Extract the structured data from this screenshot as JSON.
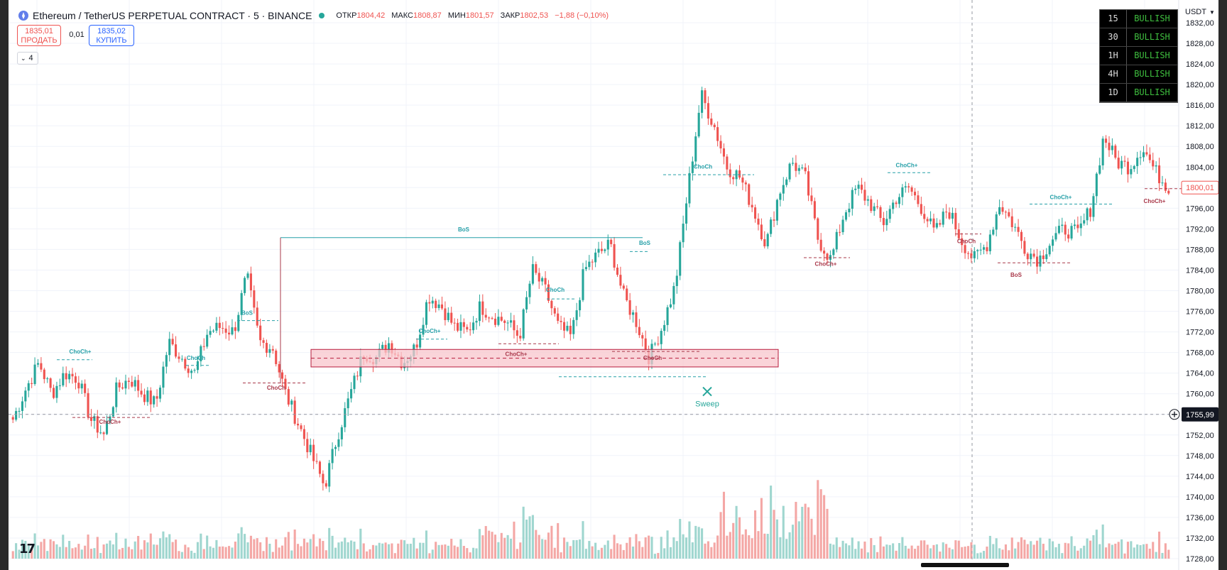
{
  "header": {
    "symbol": "Ethereum / TetherUS PERPETUAL CONTRACT · 5 · BINANCE",
    "ohlc": [
      {
        "label": "ОТКР",
        "value": "1804,42"
      },
      {
        "label": "МАКС",
        "value": "1808,87"
      },
      {
        "label": "МИН",
        "value": "1801,57"
      },
      {
        "label": "ЗАКР",
        "value": "1802,53"
      }
    ],
    "change": "−1,88 (−0,10%)"
  },
  "trade": {
    "sell_price": "1835,01",
    "sell_label": "ПРОДАТЬ",
    "spread": "0,01",
    "buy_price": "1835,02",
    "buy_label": "КУПИТЬ"
  },
  "indicators_count": "4",
  "currency": "USDT",
  "trend_table": [
    {
      "tf": "15",
      "status": "BULLISH"
    },
    {
      "tf": "30",
      "status": "BULLISH"
    },
    {
      "tf": "1H",
      "status": "BULLISH"
    },
    {
      "tf": "4H",
      "status": "BULLISH"
    },
    {
      "tf": "1D",
      "status": "BULLISH"
    }
  ],
  "colors": {
    "up": "#26a69a",
    "down": "#ef5350",
    "vol_up": "#9fd6cf",
    "vol_down": "#f4a7a5",
    "struct_bull": "#26a0a8",
    "struct_bear": "#a9384a",
    "zone_fill": "#f8c6cc",
    "zone_border": "#b71c3c"
  },
  "icons": [
    "ethereum-logo-icon",
    "chevron-down-icon",
    "crosshair-plus-icon",
    "sweep-x-icon",
    "tradingview-logo-icon"
  ],
  "chart_data": {
    "type": "candlestick",
    "title": "Ethereum / TetherUS PERPETUAL CONTRACT · 5 · BINANCE",
    "ylim": [
      1728,
      1832
    ],
    "y_ticks": [
      "1832,00",
      "1828,00",
      "1824,00",
      "1820,00",
      "1816,00",
      "1812,00",
      "1808,00",
      "1804,00",
      "1800,00",
      "1796,00",
      "1792,00",
      "1788,00",
      "1784,00",
      "1780,00",
      "1776,00",
      "1772,00",
      "1768,00",
      "1764,00",
      "1760,00",
      "1756,00",
      "1752,00",
      "1748,00",
      "1744,00",
      "1740,00",
      "1736,00",
      "1732,00",
      "1728,00"
    ],
    "current_price": "1800,01",
    "crosshair_price": "1755,99",
    "close_path": [
      1755,
      1761,
      1766,
      1760,
      1764,
      1763,
      1755,
      1752,
      1761,
      1763,
      1760,
      1758,
      1770,
      1767,
      1764,
      1772,
      1773,
      1772,
      1783,
      1770,
      1769,
      1760,
      1754,
      1748,
      1742,
      1752,
      1760,
      1768,
      1767,
      1770,
      1766,
      1769,
      1779,
      1777,
      1773,
      1772,
      1777,
      1775,
      1774,
      1771,
      1784,
      1780,
      1773,
      1771,
      1784,
      1787,
      1789,
      1779,
      1774,
      1767,
      1773,
      1781,
      1800,
      1818,
      1812,
      1804,
      1802,
      1796,
      1789,
      1799,
      1805,
      1802,
      1790,
      1786,
      1795,
      1800,
      1797,
      1793,
      1798,
      1800,
      1796,
      1791,
      1796,
      1790,
      1786,
      1789,
      1797,
      1793,
      1788,
      1786,
      1790,
      1792,
      1791,
      1796,
      1810,
      1805,
      1804,
      1808,
      1803,
      1800
    ],
    "labels": [
      {
        "text": "ChoCh+",
        "kind": "bull",
        "price": 1767.8
      },
      {
        "text": "ChoCh+",
        "kind": "bear",
        "price": 1754.2
      },
      {
        "text": "ChoCh",
        "kind": "bull",
        "price": 1766.6
      },
      {
        "text": "BoS",
        "kind": "bull",
        "price": 1775.3
      },
      {
        "text": "ChoCh",
        "kind": "bear",
        "price": 1760.8
      },
      {
        "text": "BoS",
        "kind": "bull",
        "price": 1791.5
      },
      {
        "text": "ChoCh+",
        "kind": "bull",
        "price": 1771.8
      },
      {
        "text": "ChoCh",
        "kind": "bull",
        "price": 1779.8
      },
      {
        "text": "ChoCh+",
        "kind": "bear",
        "price": 1767.3
      },
      {
        "text": "ChoCh",
        "kind": "bear",
        "price": 1766.6
      },
      {
        "text": "BoS",
        "kind": "bull",
        "price": 1788.9
      },
      {
        "text": "ChoCh",
        "kind": "bull",
        "price": 1803.7
      },
      {
        "text": "ChoCh+",
        "kind": "bear",
        "price": 1784.8
      },
      {
        "text": "ChoCh+",
        "kind": "bull",
        "price": 1804.0
      },
      {
        "text": "ChoCh",
        "kind": "bear",
        "price": 1789.2
      },
      {
        "text": "BoS",
        "kind": "bear",
        "price": 1782.7
      },
      {
        "text": "ChoCh+",
        "kind": "bull",
        "price": 1797.8
      },
      {
        "text": "ChoCh+",
        "kind": "bear",
        "price": 1797.0
      },
      {
        "text": "Sweep",
        "kind": "sweep",
        "price": 1758.5
      }
    ],
    "zone": {
      "top": 1768.6,
      "bottom": 1765.2
    }
  }
}
